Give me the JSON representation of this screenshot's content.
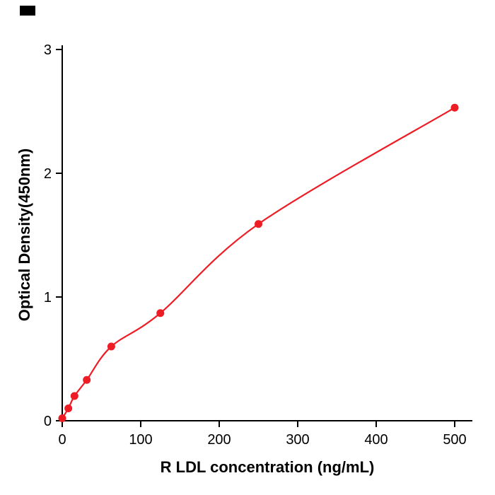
{
  "chart_data": {
    "type": "scatter",
    "title": "",
    "xlabel": "R  LDL concentration (ng/mL)",
    "ylabel": "Optical Density(450nm)",
    "x": [
      0,
      7.8,
      15.6,
      31.25,
      62.5,
      125,
      250,
      500
    ],
    "y": [
      0.02,
      0.1,
      0.2,
      0.33,
      0.6,
      0.87,
      1.59,
      2.53
    ],
    "xticks": [
      0,
      100,
      200,
      300,
      400,
      500
    ],
    "yticks": [
      0,
      1,
      2,
      3
    ],
    "xlim": [
      0,
      520
    ],
    "ylim": [
      0,
      3
    ],
    "grid": false,
    "legend": "none",
    "line_color": "#ee1c25",
    "point_color": "#ee1c25",
    "axis_color": "#000000",
    "curve_style": "smooth-fit-through-points"
  }
}
